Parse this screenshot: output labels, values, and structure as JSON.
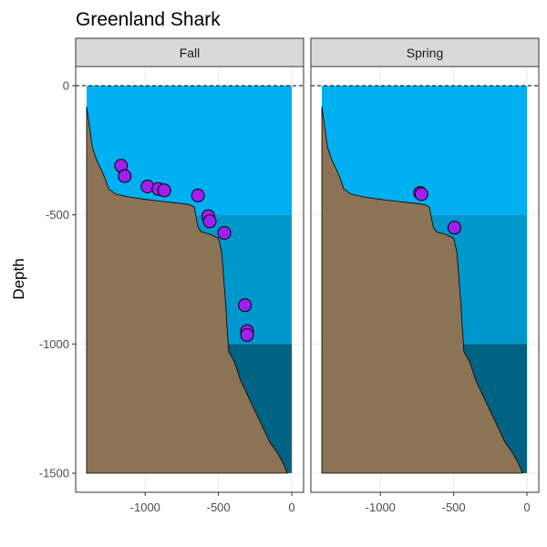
{
  "chart_data": {
    "type": "scatter",
    "title": "Greenland Shark",
    "xlabel": "",
    "ylabel": "Depth",
    "xlim": [
      -1400,
      0
    ],
    "ylim": [
      -1500,
      0
    ],
    "x_ticks": [
      -1000,
      -500,
      0
    ],
    "y_ticks": [
      0,
      -500,
      -1000,
      -1500
    ],
    "x_tick_labels": [
      "-1000",
      "-500",
      "0"
    ],
    "y_tick_labels": [
      "0",
      "-500",
      "-1000",
      "-1500"
    ],
    "grid": true,
    "reference_line": {
      "y": 0,
      "style": "dashed"
    },
    "depth_bands": [
      {
        "from": 0,
        "to": -500,
        "color": "#00B0F0"
      },
      {
        "from": -500,
        "to": -1000,
        "color": "#0097CC"
      },
      {
        "from": -1000,
        "to": -1500,
        "color": "#006282"
      }
    ],
    "seafloor": {
      "color": "#8B7355",
      "profile": [
        [
          -1400,
          -80
        ],
        [
          -1380,
          -160
        ],
        [
          -1360,
          -240
        ],
        [
          -1330,
          -290
        ],
        [
          -1300,
          -325
        ],
        [
          -1270,
          -365
        ],
        [
          -1250,
          -400
        ],
        [
          -1200,
          -420
        ],
        [
          -1100,
          -432
        ],
        [
          -1000,
          -440
        ],
        [
          -900,
          -447
        ],
        [
          -800,
          -453
        ],
        [
          -700,
          -460
        ],
        [
          -665,
          -470
        ],
        [
          -655,
          -500
        ],
        [
          -640,
          -545
        ],
        [
          -620,
          -565
        ],
        [
          -560,
          -575
        ],
        [
          -500,
          -590
        ],
        [
          -480,
          -640
        ],
        [
          -470,
          -700
        ],
        [
          -460,
          -780
        ],
        [
          -450,
          -850
        ],
        [
          -440,
          -950
        ],
        [
          -430,
          -1030
        ],
        [
          -390,
          -1070
        ],
        [
          -350,
          -1140
        ],
        [
          -300,
          -1200
        ],
        [
          -250,
          -1260
        ],
        [
          -200,
          -1320
        ],
        [
          -150,
          -1380
        ],
        [
          -100,
          -1420
        ],
        [
          -60,
          -1460
        ],
        [
          -30,
          -1500
        ]
      ]
    },
    "point_color": "#A020F0",
    "panels": [
      {
        "name": "Fall",
        "points": [
          {
            "x": -1165,
            "y": -310
          },
          {
            "x": -1140,
            "y": -350
          },
          {
            "x": -985,
            "y": -390
          },
          {
            "x": -910,
            "y": -400
          },
          {
            "x": -870,
            "y": -405
          },
          {
            "x": -640,
            "y": -425
          },
          {
            "x": -570,
            "y": -505
          },
          {
            "x": -560,
            "y": -525
          },
          {
            "x": -460,
            "y": -570
          },
          {
            "x": -320,
            "y": -850
          },
          {
            "x": -305,
            "y": -950
          },
          {
            "x": -305,
            "y": -965
          }
        ]
      },
      {
        "name": "Spring",
        "points": [
          {
            "x": -730,
            "y": -415
          },
          {
            "x": -720,
            "y": -420
          },
          {
            "x": -495,
            "y": -550
          }
        ]
      }
    ]
  }
}
